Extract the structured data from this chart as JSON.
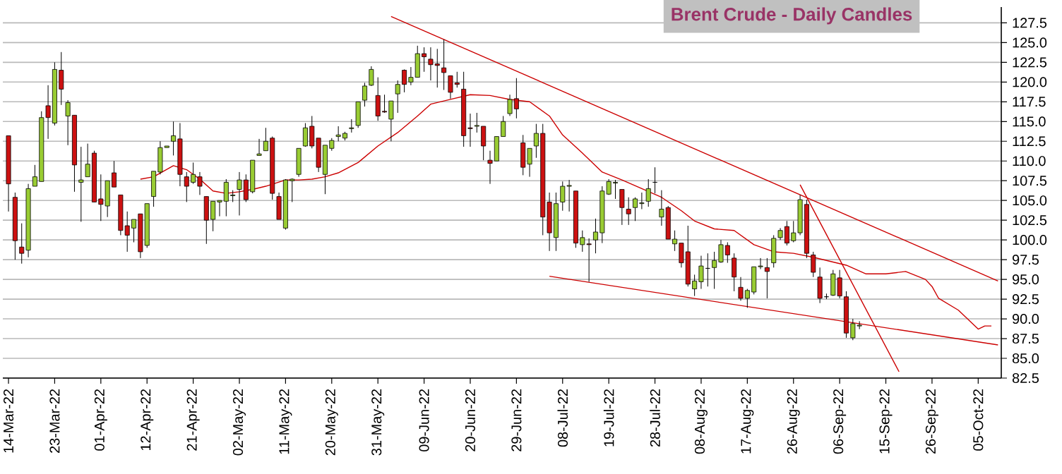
{
  "chart_data": {
    "type": "candlestick",
    "title": "Brent Crude - Daily Candles",
    "categories": [
      "14-Mar-22",
      null,
      null,
      null,
      null,
      null,
      null,
      "23-Mar-22",
      null,
      null,
      null,
      null,
      null,
      null,
      "01-Apr-22",
      null,
      null,
      null,
      null,
      null,
      null,
      "12-Apr-22",
      null,
      null,
      null,
      null,
      null,
      null,
      "21-Apr-22",
      null,
      null,
      null,
      null,
      null,
      null,
      "02-May-22",
      null,
      null,
      null,
      null,
      null,
      null,
      "11-May-22",
      null,
      null,
      null,
      null,
      null,
      null,
      "20-May-22",
      null,
      null,
      null,
      null,
      null,
      null,
      "31-May-22",
      null,
      null,
      null,
      null,
      null,
      null,
      "09-Jun-22",
      null,
      null,
      null,
      null,
      null,
      null,
      "20-Jun-22",
      null,
      null,
      null,
      null,
      null,
      null,
      "29-Jun-22",
      null,
      null,
      null,
      null,
      null,
      null,
      "08-Jul-22",
      null,
      null,
      null,
      null,
      null,
      null,
      "19-Jul-22",
      null,
      null,
      null,
      null,
      null,
      null,
      "28-Jul-22",
      null,
      null,
      null,
      null,
      null,
      null,
      "08-Aug-22",
      null,
      null,
      null,
      null,
      null,
      null,
      "17-Aug-22",
      null,
      null,
      null,
      null,
      null,
      null,
      "26-Aug-22",
      null,
      null,
      null,
      null,
      null,
      null,
      "06-Sep-22",
      null,
      null,
      null,
      null,
      null,
      null,
      "15-Sep-22",
      null,
      null,
      null,
      null,
      null,
      null,
      "26-Sep-22",
      null,
      null,
      null,
      null,
      null,
      null,
      "05-Oct-22",
      null,
      null,
      null
    ],
    "ohlc": [
      [
        113.2,
        113.2,
        103.6,
        107.1
      ],
      [
        105.4,
        106.0,
        97.5,
        99.9
      ],
      [
        99.1,
        102.1,
        97.0,
        98.3
      ],
      [
        98.7,
        107.1,
        97.8,
        106.5
      ],
      [
        106.8,
        109.5,
        106.8,
        108.0
      ],
      [
        107.4,
        116.3,
        107.4,
        115.5
      ],
      [
        117.0,
        119.6,
        112.8,
        115.5
      ],
      [
        114.8,
        122.5,
        114.5,
        121.6
      ],
      [
        121.5,
        123.8,
        117.1,
        119.1
      ],
      [
        115.7,
        117.7,
        112.0,
        117.4
      ],
      [
        115.8,
        115.8,
        106.1,
        109.5
      ],
      [
        107.3,
        111.8,
        102.3,
        107.6
      ],
      [
        108.0,
        112.2,
        108.0,
        109.6
      ],
      [
        111.0,
        111.3,
        104.8,
        104.8
      ],
      [
        105.2,
        108.3,
        102.4,
        104.5
      ],
      [
        104.3,
        107.5,
        102.9,
        107.5
      ],
      [
        108.5,
        110.0,
        106.7,
        106.7
      ],
      [
        105.7,
        105.7,
        100.6,
        101.2
      ],
      [
        101.8,
        103.6,
        98.5,
        100.6
      ],
      [
        101.5,
        102.6,
        99.7,
        102.6
      ],
      [
        103.3,
        103.3,
        97.7,
        98.5
      ],
      [
        99.3,
        104.6,
        99.0,
        104.6
      ],
      [
        105.5,
        108.7,
        104.2,
        108.7
      ],
      [
        108.6,
        112.5,
        108.3,
        111.7
      ],
      [
        111.7,
        111.9,
        111.7,
        111.9
      ],
      [
        112.5,
        115.0,
        110.7,
        113.2
      ],
      [
        112.8,
        114.8,
        106.8,
        108.3
      ],
      [
        108.0,
        108.6,
        104.8,
        106.8
      ],
      [
        107.3,
        109.8,
        107.1,
        108.3
      ],
      [
        108.0,
        108.6,
        105.7,
        106.8
      ],
      [
        105.5,
        105.5,
        99.5,
        102.5
      ],
      [
        102.6,
        104.9,
        101.1,
        104.9
      ],
      [
        104.8,
        105.0,
        103.0,
        105.0
      ],
      [
        104.9,
        107.7,
        103.0,
        107.3
      ],
      [
        105.6,
        106.3,
        104.8,
        105.7
      ],
      [
        106.4,
        108.6,
        103.1,
        107.6
      ],
      [
        107.6,
        108.3,
        104.8,
        105.1
      ],
      [
        106.1,
        110.1,
        105.9,
        110.1
      ],
      [
        110.7,
        112.8,
        110.7,
        110.9
      ],
      [
        111.3,
        114.2,
        111.3,
        112.5
      ],
      [
        112.9,
        113.1,
        105.1,
        105.9
      ],
      [
        105.5,
        106.0,
        102.6,
        102.6
      ],
      [
        101.5,
        107.7,
        101.3,
        107.6
      ],
      [
        107.5,
        107.8,
        104.8,
        107.7
      ],
      [
        108.3,
        111.6,
        108.0,
        111.6
      ],
      [
        111.9,
        114.8,
        111.8,
        114.2
      ],
      [
        114.4,
        115.7,
        111.6,
        111.9
      ],
      [
        112.9,
        112.9,
        108.6,
        109.2
      ],
      [
        108.3,
        112.0,
        105.8,
        112.0
      ],
      [
        111.6,
        112.9,
        111.3,
        112.6
      ],
      [
        113.1,
        114.4,
        112.5,
        113.3
      ],
      [
        112.9,
        113.7,
        112.6,
        113.5
      ],
      [
        114.1,
        115.3,
        113.6,
        114.2
      ],
      [
        114.5,
        117.5,
        114.2,
        117.5
      ],
      [
        117.7,
        119.9,
        116.9,
        119.5
      ],
      [
        119.6,
        122.0,
        119.5,
        121.6
      ],
      [
        118.3,
        120.6,
        115.1,
        115.7
      ],
      [
        116.3,
        118.4,
        116.1,
        116.2
      ],
      [
        115.3,
        117.6,
        112.5,
        117.6
      ],
      [
        118.5,
        120.2,
        116.1,
        119.7
      ],
      [
        121.5,
        121.6,
        118.7,
        119.7
      ],
      [
        120.0,
        121.9,
        119.6,
        120.6
      ],
      [
        120.6,
        124.6,
        120.6,
        123.6
      ],
      [
        123.6,
        124.4,
        121.3,
        123.2
      ],
      [
        122.9,
        124.4,
        120.2,
        122.2
      ],
      [
        122.3,
        124.2,
        119.3,
        122.1
      ],
      [
        121.8,
        125.4,
        119.0,
        121.2
      ],
      [
        120.8,
        120.8,
        117.9,
        118.7
      ],
      [
        119.9,
        121.3,
        119.3,
        119.7
      ],
      [
        119.1,
        121.3,
        111.8,
        113.2
      ],
      [
        114.2,
        116.0,
        111.8,
        114.1
      ],
      [
        114.4,
        116.1,
        113.6,
        114.5
      ],
      [
        114.4,
        114.4,
        110.1,
        111.9
      ],
      [
        110.1,
        111.3,
        107.1,
        109.7
      ],
      [
        110.0,
        113.1,
        110.0,
        113.1
      ],
      [
        113.1,
        115.7,
        113.1,
        115.0
      ],
      [
        116.0,
        118.4,
        115.7,
        117.8
      ],
      [
        117.9,
        120.5,
        115.4,
        116.6
      ],
      [
        112.3,
        113.3,
        108.2,
        109.2
      ],
      [
        109.6,
        111.6,
        108.0,
        111.6
      ],
      [
        111.9,
        114.7,
        110.4,
        113.5
      ],
      [
        113.5,
        114.7,
        100.6,
        102.9
      ],
      [
        104.8,
        106.0,
        98.6,
        100.9
      ],
      [
        100.3,
        106.0,
        98.6,
        104.6
      ],
      [
        104.8,
        107.4,
        103.7,
        106.8
      ],
      [
        106.8,
        107.6,
        103.6,
        106.9
      ],
      [
        106.2,
        106.2,
        99.0,
        99.6
      ],
      [
        99.4,
        101.2,
        98.5,
        100.3
      ],
      [
        99.5,
        100.2,
        94.7,
        99.4
      ],
      [
        100.0,
        102.7,
        98.3,
        101.0
      ],
      [
        100.9,
        106.8,
        99.6,
        106.2
      ],
      [
        105.8,
        107.7,
        105.7,
        107.4
      ],
      [
        107.2,
        107.6,
        105.2,
        107.3
      ],
      [
        106.4,
        106.4,
        101.9,
        104.1
      ],
      [
        103.9,
        105.4,
        101.9,
        103.3
      ],
      [
        104.1,
        105.4,
        102.4,
        105.2
      ],
      [
        104.6,
        106.0,
        103.9,
        104.7
      ],
      [
        104.9,
        107.7,
        104.2,
        106.5
      ],
      [
        107.3,
        109.2,
        105.9,
        107.3
      ],
      [
        102.9,
        106.3,
        101.8,
        103.9
      ],
      [
        104.1,
        104.3,
        100.1,
        100.1
      ],
      [
        99.5,
        101.2,
        98.6,
        100.1
      ],
      [
        99.6,
        99.6,
        96.5,
        97.1
      ],
      [
        98.5,
        101.8,
        94.1,
        94.4
      ],
      [
        93.8,
        95.6,
        92.9,
        94.8
      ],
      [
        94.7,
        98.0,
        93.8,
        96.7
      ],
      [
        96.4,
        98.3,
        94.1,
        96.4
      ],
      [
        96.5,
        98.5,
        93.8,
        97.4
      ],
      [
        97.2,
        100.0,
        97.1,
        99.4
      ],
      [
        99.3,
        99.7,
        97.1,
        98.1
      ],
      [
        97.7,
        98.3,
        93.5,
        95.3
      ],
      [
        94.0,
        95.3,
        92.3,
        92.6
      ],
      [
        92.6,
        93.8,
        91.4,
        93.6
      ],
      [
        93.4,
        96.6,
        93.1,
        96.6
      ],
      [
        96.6,
        97.7,
        96.3,
        96.7
      ],
      [
        96.5,
        97.7,
        92.6,
        96.0
      ],
      [
        97.1,
        100.6,
        96.5,
        100.2
      ],
      [
        100.3,
        101.5,
        100.0,
        101.2
      ],
      [
        101.7,
        102.4,
        99.3,
        99.6
      ],
      [
        99.9,
        102.4,
        99.7,
        100.9
      ],
      [
        100.9,
        105.7,
        100.6,
        105.1
      ],
      [
        104.5,
        105.1,
        97.7,
        98.3
      ],
      [
        98.1,
        98.5,
        95.3,
        95.9
      ],
      [
        95.3,
        96.5,
        92.0,
        92.6
      ],
      [
        92.8,
        93.2,
        92.5,
        92.8
      ],
      [
        93.0,
        96.2,
        92.9,
        95.7
      ],
      [
        95.2,
        96.2,
        92.6,
        92.9
      ],
      [
        92.8,
        93.5,
        87.6,
        88.2
      ],
      [
        87.6,
        90.0,
        87.3,
        89.4
      ],
      [
        89.1,
        89.7,
        88.7,
        89.2
      ],
      null,
      null,
      null,
      null,
      null,
      null,
      null,
      null,
      null,
      null,
      null,
      null,
      null,
      null,
      null,
      null,
      null,
      null,
      null,
      null,
      null
    ],
    "series": [
      {
        "type": "line",
        "color": "#cc0000",
        "values": [
          null,
          null,
          null,
          null,
          null,
          null,
          null,
          null,
          null,
          null,
          null,
          null,
          null,
          null,
          null,
          null,
          null,
          null,
          null,
          null,
          107.7,
          null,
          108.0,
          null,
          null,
          109.4,
          null,
          108.9,
          null,
          107.7,
          null,
          106.2,
          null,
          105.9,
          null,
          106.1,
          null,
          106.4,
          null,
          106.8,
          null,
          null,
          107.6,
          null,
          107.6,
          null,
          107.7,
          null,
          108.0,
          null,
          108.5,
          null,
          null,
          109.8,
          null,
          null,
          111.9,
          null,
          null,
          113.6,
          null,
          null,
          115.7,
          null,
          117.2,
          null,
          null,
          117.8,
          null,
          null,
          118.4,
          null,
          null,
          118.3,
          null,
          null,
          117.8,
          null,
          null,
          117.5,
          null,
          null,
          115.7,
          null,
          113.3,
          null,
          null,
          111.0,
          null,
          null,
          108.6,
          null,
          null,
          107.6,
          null,
          null,
          106.5,
          null,
          null,
          105.4,
          null,
          null,
          103.7,
          null,
          102.4,
          null,
          null,
          101.4,
          null,
          null,
          101.2,
          null,
          null,
          99.4,
          null,
          null,
          98.5,
          null,
          null,
          98.3,
          null,
          null,
          97.8,
          null,
          97.4,
          null,
          null,
          96.8,
          null,
          null,
          95.7,
          null,
          null,
          95.7,
          null,
          null,
          96.0,
          null,
          null,
          95.0,
          94.1,
          92.6,
          null,
          null,
          91.1,
          null,
          null,
          88.7,
          89.1,
          89.1,
          null
        ]
      },
      {
        "type": "line",
        "color": "#cc0000",
        "values": [
          null,
          null,
          null,
          null,
          null,
          null,
          null,
          null,
          null,
          null,
          null,
          null,
          null,
          null,
          null,
          null,
          null,
          null,
          null,
          null,
          null,
          null,
          null,
          null,
          null,
          null,
          null,
          null,
          null,
          null,
          null,
          null,
          null,
          null,
          null,
          null,
          null,
          null,
          null,
          null,
          null,
          null,
          null,
          null,
          null,
          null,
          null,
          null,
          null,
          null,
          null,
          null,
          null,
          null,
          null,
          null,
          null,
          null,
          128.3,
          null,
          null,
          null,
          null,
          null,
          null,
          null,
          null,
          null,
          null,
          null,
          null,
          null,
          null,
          null,
          null,
          null,
          null,
          null,
          null,
          null,
          null,
          null,
          null,
          null,
          null,
          null,
          null,
          null,
          null,
          null,
          null,
          null,
          null,
          null,
          null,
          null,
          null,
          null,
          null,
          null,
          null,
          null,
          null,
          null,
          null,
          null,
          null,
          null,
          null,
          null,
          null,
          null,
          null,
          null,
          null,
          null,
          null,
          null,
          null,
          null,
          null,
          null,
          null,
          null,
          null,
          null,
          null,
          null,
          null,
          null,
          null,
          null,
          null,
          null,
          null,
          null,
          null,
          null,
          null,
          null,
          null,
          null,
          null,
          null,
          null,
          null,
          null,
          null,
          null,
          null,
          94.8
        ]
      },
      {
        "type": "line",
        "color": "#cc0000",
        "values": [
          null,
          null,
          null,
          null,
          null,
          null,
          null,
          null,
          null,
          null,
          null,
          null,
          null,
          null,
          null,
          null,
          null,
          null,
          null,
          null,
          null,
          null,
          null,
          null,
          null,
          null,
          null,
          null,
          null,
          null,
          null,
          null,
          null,
          null,
          null,
          null,
          null,
          null,
          null,
          null,
          null,
          null,
          null,
          null,
          null,
          null,
          null,
          null,
          null,
          null,
          null,
          null,
          null,
          null,
          null,
          null,
          null,
          null,
          null,
          null,
          null,
          null,
          null,
          null,
          null,
          null,
          null,
          null,
          null,
          null,
          null,
          null,
          null,
          null,
          null,
          null,
          null,
          null,
          null,
          null,
          null,
          null,
          95.4,
          null,
          null,
          null,
          null,
          null,
          null,
          null,
          null,
          null,
          null,
          null,
          null,
          null,
          null,
          null,
          null,
          null,
          null,
          null,
          null,
          null,
          null,
          null,
          null,
          null,
          null,
          null,
          null,
          null,
          null,
          null,
          null,
          null,
          null,
          null,
          null,
          null,
          null,
          null,
          null,
          null,
          null,
          null,
          null,
          null,
          null,
          null,
          null,
          null,
          null,
          null,
          null,
          null,
          null,
          null,
          null,
          null,
          null,
          null,
          null,
          null,
          null,
          null,
          null,
          null,
          null,
          null,
          86.7
        ]
      },
      {
        "type": "line",
        "color": "#cc0000",
        "values": [
          null,
          null,
          null,
          null,
          null,
          null,
          null,
          null,
          null,
          null,
          null,
          null,
          null,
          null,
          null,
          null,
          null,
          null,
          null,
          null,
          null,
          null,
          null,
          null,
          null,
          null,
          null,
          null,
          null,
          null,
          null,
          null,
          null,
          null,
          null,
          null,
          null,
          null,
          null,
          null,
          null,
          null,
          null,
          null,
          null,
          null,
          null,
          null,
          null,
          null,
          null,
          null,
          null,
          null,
          null,
          null,
          null,
          null,
          null,
          null,
          null,
          null,
          null,
          null,
          null,
          null,
          null,
          null,
          null,
          null,
          null,
          null,
          null,
          null,
          null,
          null,
          null,
          null,
          null,
          null,
          null,
          null,
          null,
          null,
          null,
          null,
          null,
          null,
          null,
          null,
          null,
          null,
          null,
          null,
          null,
          null,
          null,
          null,
          null,
          null,
          null,
          null,
          null,
          null,
          null,
          null,
          null,
          null,
          null,
          null,
          null,
          null,
          null,
          null,
          null,
          null,
          null,
          null,
          null,
          null,
          107.0,
          null,
          null,
          null,
          null,
          null,
          null,
          null,
          null,
          null,
          null,
          null,
          null,
          null,
          null,
          83.3,
          null,
          null,
          null,
          null,
          null,
          null,
          null,
          null,
          null,
          null,
          null,
          null,
          null,
          null,
          null
        ]
      }
    ],
    "ylim": [
      82.5,
      129.5
    ],
    "yticks": [
      82.5,
      {
        "value": 85,
        "label": "85.0"
      },
      87.5,
      {
        "value": 90,
        "label": "90.0"
      },
      92.5,
      {
        "value": 95,
        "label": "95.0"
      },
      97.5,
      {
        "value": 100,
        "label": "100.0"
      },
      102.5,
      {
        "value": 105,
        "label": "105.0"
      },
      107.5,
      {
        "value": 110,
        "label": "110.0"
      },
      112.5,
      {
        "value": 115,
        "label": "115.0"
      },
      117.5,
      {
        "value": 120,
        "label": "120.0"
      },
      122.5,
      {
        "value": 125,
        "label": "125.0"
      },
      127.5
    ],
    "grid": "y"
  }
}
